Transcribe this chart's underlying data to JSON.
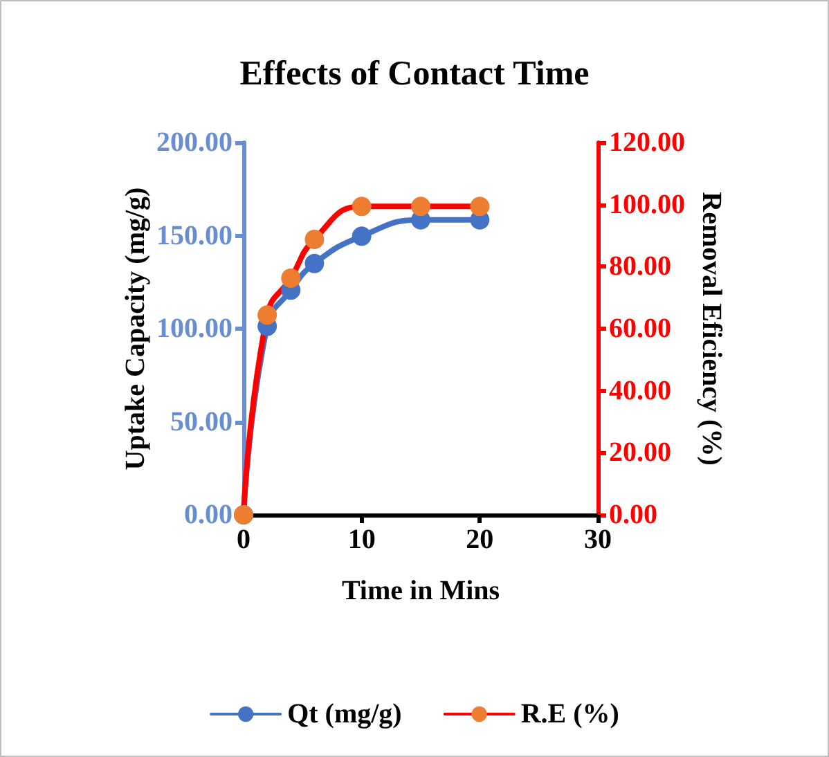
{
  "chart_data": {
    "type": "line",
    "title": "Effects of Contact Time",
    "xlabel": "Time in Mins",
    "ylabel": "Uptake Capacity (mg/g)",
    "y2label": "Removal Eficiency (%)",
    "x": [
      0,
      2,
      4,
      6,
      10,
      15,
      20
    ],
    "series": [
      {
        "name": "Qt (mg/g)",
        "color": "#4472c4",
        "values": [
          0,
          101.3,
          120.7,
          135,
          149.7,
          158.5,
          158.5
        ]
      },
      {
        "name": "R.E (%)",
        "color": "#ff0000",
        "axis": "y2",
        "values": [
          0,
          64.4,
          76.3,
          88.8,
          99.4,
          99.4,
          99.4
        ]
      }
    ],
    "xlim": [
      0,
      30
    ],
    "xticks": [
      0,
      10,
      20,
      30
    ],
    "ylim": [
      0,
      200
    ],
    "yticks": [
      {
        "value": 0,
        "label": "0.00"
      },
      {
        "value": 50,
        "label": "50.00"
      },
      {
        "value": 100,
        "label": "100.00"
      },
      {
        "value": 150,
        "label": "150.00"
      },
      {
        "value": 200,
        "label": "200.00"
      }
    ],
    "y2lim": [
      0,
      120
    ],
    "y2ticks": [
      {
        "value": 0,
        "label": "0.00"
      },
      {
        "value": 20,
        "label": "20.00"
      },
      {
        "value": 40,
        "label": "40.00"
      },
      {
        "value": 60,
        "label": "60.00"
      },
      {
        "value": 80,
        "label": "80.00"
      },
      {
        "value": 100,
        "label": "100.00"
      },
      {
        "value": 120,
        "label": "120.00"
      }
    ],
    "grid": false,
    "legend": "bottom",
    "marker": "circle",
    "line_style": "solid"
  }
}
